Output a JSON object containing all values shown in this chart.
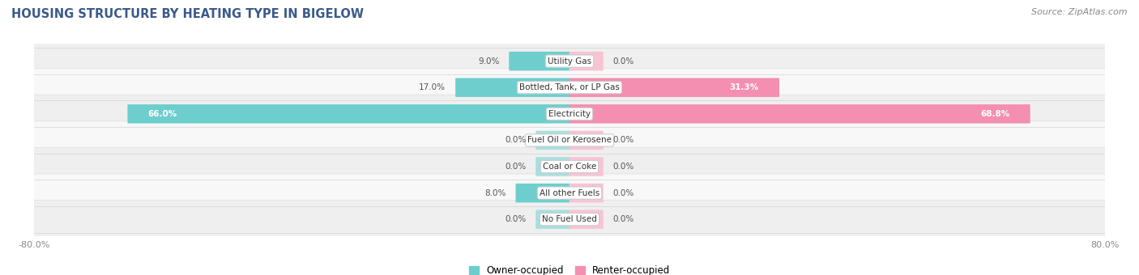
{
  "title": "HOUSING STRUCTURE BY HEATING TYPE IN BIGELOW",
  "source": "Source: ZipAtlas.com",
  "categories": [
    "Utility Gas",
    "Bottled, Tank, or LP Gas",
    "Electricity",
    "Fuel Oil or Kerosene",
    "Coal or Coke",
    "All other Fuels",
    "No Fuel Used"
  ],
  "owner_values": [
    9.0,
    17.0,
    66.0,
    0.0,
    0.0,
    8.0,
    0.0
  ],
  "renter_values": [
    0.0,
    31.3,
    68.8,
    0.0,
    0.0,
    0.0,
    0.0
  ],
  "owner_color": "#6ecece",
  "renter_color": "#f48fb1",
  "owner_color_light": "#aadede",
  "renter_color_light": "#f8c4d4",
  "axis_max": 80.0,
  "axis_min": -80.0,
  "row_bg_odd": "#efefef",
  "row_bg_even": "#f8f8f8",
  "label_bg_color": "#ffffff",
  "min_bar_width": 5.0,
  "legend_owner": "Owner-occupied",
  "legend_renter": "Renter-occupied"
}
